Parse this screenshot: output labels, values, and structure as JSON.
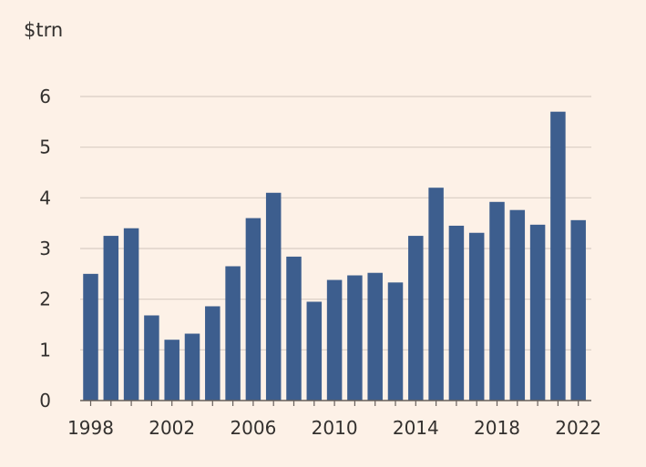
{
  "chart_data": {
    "type": "bar",
    "title": "",
    "xlabel": "",
    "ylabel": "$trn",
    "ylim": [
      0,
      6
    ],
    "yticks": [
      "0",
      "1",
      "2",
      "3",
      "4",
      "5",
      "6"
    ],
    "grid": true,
    "bar_color": "#3d5e8e",
    "categories": [
      "1998",
      "1999",
      "2000",
      "2001",
      "2002",
      "2003",
      "2004",
      "2005",
      "2006",
      "2007",
      "2008",
      "2009",
      "2010",
      "2011",
      "2012",
      "2013",
      "2014",
      "2015",
      "2016",
      "2017",
      "2018",
      "2019",
      "2020",
      "2021",
      "2022"
    ],
    "xtick_labels": [
      "1998",
      "2002",
      "2006",
      "2010",
      "2014",
      "2018",
      "2022"
    ],
    "values": [
      2.5,
      3.25,
      3.4,
      1.68,
      1.2,
      1.32,
      1.86,
      2.65,
      3.6,
      4.1,
      2.84,
      1.95,
      2.38,
      2.47,
      2.52,
      2.33,
      3.25,
      4.2,
      3.45,
      3.31,
      3.92,
      3.76,
      3.47,
      5.7,
      3.56
    ]
  }
}
